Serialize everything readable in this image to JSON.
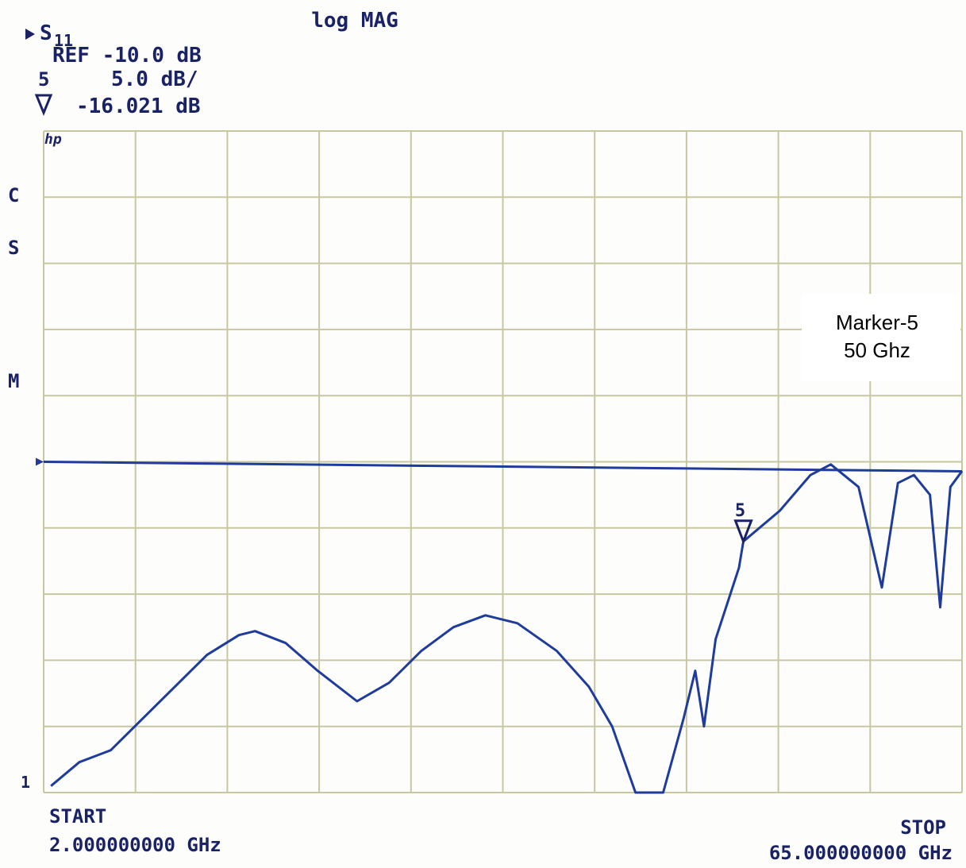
{
  "chart_data": {
    "type": "line",
    "title": "log MAG",
    "channel": "S",
    "channel_sub": "11",
    "ref_text": "REF -10.0 dB",
    "scale_marker": "5",
    "scale_text": "5.0 dB/",
    "marker_readout": "-16.021 dB",
    "logo": "hp",
    "softkeys": [
      "C",
      "S",
      "M"
    ],
    "trace_label": "1",
    "start_label": "START",
    "start_value": "2.000000000 GHz",
    "stop_label": "STOP",
    "stop_value": "65.000000000 GHz",
    "annotation": [
      "Marker-5",
      "50 Ghz"
    ],
    "xlim": [
      2,
      65
    ],
    "ylim": [
      -35,
      15
    ],
    "xticks": [
      2,
      8.3,
      14.6,
      20.9,
      27.2,
      33.5,
      39.8,
      46.1,
      52.4,
      58.7,
      65
    ],
    "yticks": [
      -35,
      -30,
      -25,
      -20,
      -15,
      -10,
      -5,
      0,
      5,
      10,
      15
    ],
    "grid": true,
    "ref_line": -10,
    "series": [
      {
        "name": "S11",
        "color": "#1f3c9c",
        "x": [
          2.5,
          4.45,
          6.6,
          8.8,
          11.0,
          13.2,
          15.4,
          16.5,
          18.6,
          20.8,
          23.5,
          25.7,
          27.9,
          30.1,
          32.3,
          34.5,
          37.2,
          39.4,
          41.0,
          42.6,
          44.5,
          45.9,
          46.7,
          47.3,
          48.1,
          49.7,
          50,
          52.5,
          54.6,
          56.0,
          57.9,
          59.5,
          60.6,
          61.7,
          62.8,
          63.5,
          64.2,
          65
        ],
        "values": [
          -34.5,
          -32.7,
          -31.8,
          -29.4,
          -27.0,
          -24.6,
          -23.1,
          -22.8,
          -23.7,
          -25.8,
          -28.1,
          -26.7,
          -24.3,
          -22.5,
          -21.6,
          -22.2,
          -24.3,
          -27.0,
          -30.0,
          -35,
          -35,
          -29.4,
          -25.8,
          -30.0,
          -23.4,
          -18.0,
          -16.021,
          -13.7,
          -11.0,
          -10.2,
          -11.9,
          -19.5,
          -11.6,
          -11.0,
          -12.5,
          -21.0,
          -11.9,
          -10.7
        ]
      }
    ],
    "marker": {
      "name": "5",
      "x": 50,
      "y": -16.021
    }
  }
}
